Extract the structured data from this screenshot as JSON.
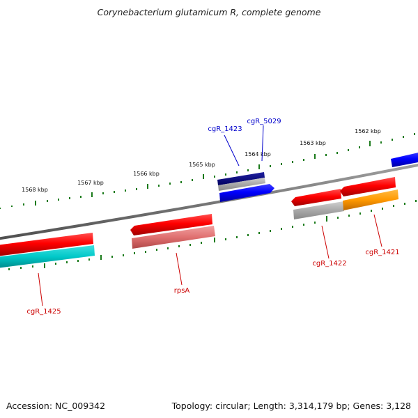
{
  "title": "Corynebacterium glutamicum R, complete genome",
  "footer": {
    "accession": "Accession: NC_009342",
    "topology": "Topology: circular; Length: 3,314,179 bp; Genes: 3,128"
  },
  "ticks": [
    {
      "label": "1568 kbp",
      "kbp": 1568
    },
    {
      "label": "1567 kbp",
      "kbp": 1567
    },
    {
      "label": "1566 kbp",
      "kbp": 1566
    },
    {
      "label": "1565 kbp",
      "kbp": 1565
    },
    {
      "label": "1564 kbp",
      "kbp": 1564
    },
    {
      "label": "1563 kbp",
      "kbp": 1563
    },
    {
      "label": "1562 kbp",
      "kbp": 1562
    }
  ],
  "genes": [
    {
      "label": "cgR_1423",
      "color": "#0000cc"
    },
    {
      "label": "cgR_5029",
      "color": "#0000cc"
    },
    {
      "label": "cgR_1425",
      "color": "#cc0000"
    },
    {
      "label": "rpsA",
      "color": "#cc0000"
    },
    {
      "label": "cgR_1422",
      "color": "#cc0000"
    },
    {
      "label": "cgR_1421",
      "color": "#cc0000"
    }
  ],
  "colors": {
    "backbone": "#808080",
    "tick_marks": "#1a7a1a",
    "cds_red": "#ff0000",
    "cds_blue": "#0000ff",
    "cds_navy": "#000080",
    "gray": "#a0a0a0",
    "cyan": "#00c8c8",
    "orange": "#ff9900",
    "pink": "#e07070"
  }
}
